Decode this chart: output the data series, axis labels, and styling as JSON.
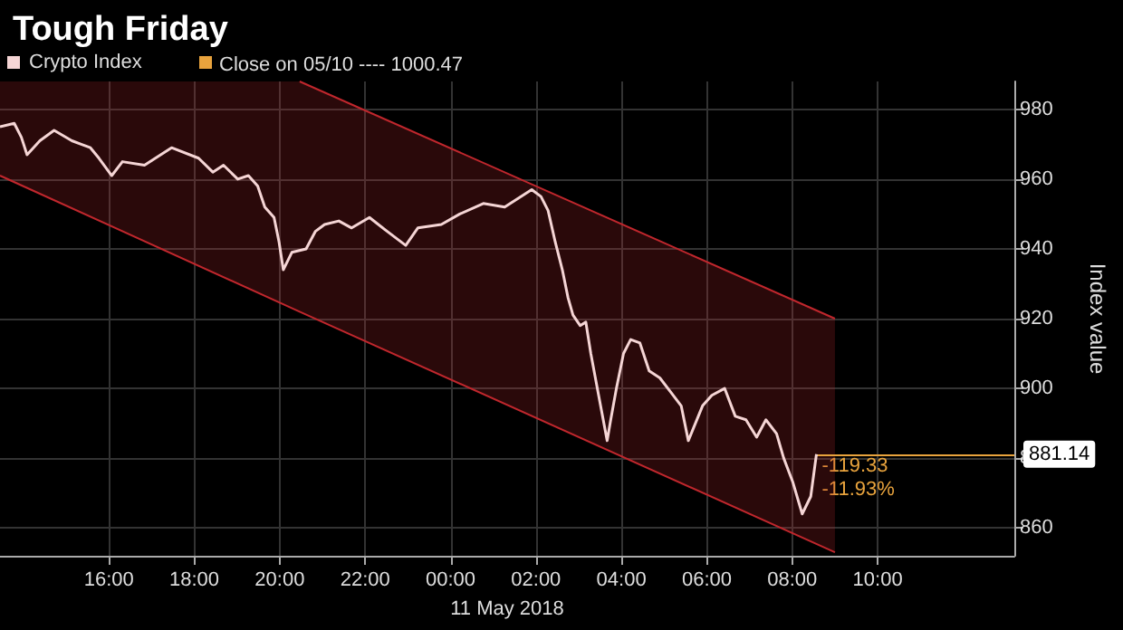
{
  "chart_data": {
    "type": "line",
    "title": "Tough Friday",
    "ylabel": "Index value",
    "xlabel": "11 May 2018",
    "xlim": [
      "2018-05-10T13:27",
      "2018-05-11T13:12"
    ],
    "xticks": [
      {
        "value": "2018-05-10T16:00",
        "label": "16:00"
      },
      {
        "value": "2018-05-10T18:00",
        "label": "18:00"
      },
      {
        "value": "2018-05-10T20:00",
        "label": "20:00"
      },
      {
        "value": "2018-05-10T22:00",
        "label": "22:00"
      },
      {
        "value": "2018-05-11T00:00",
        "label": "00:00"
      },
      {
        "value": "2018-05-11T02:00",
        "label": "02:00"
      },
      {
        "value": "2018-05-11T04:00",
        "label": "04:00"
      },
      {
        "value": "2018-05-11T06:00",
        "label": "06:00"
      },
      {
        "value": "2018-05-11T08:00",
        "label": "08:00"
      },
      {
        "value": "2018-05-11T10:00",
        "label": "10:00"
      }
    ],
    "ylim": [
      852,
      988
    ],
    "yticks": [
      860,
      880,
      900,
      920,
      940,
      960,
      980
    ],
    "grid": true,
    "legend": "top left",
    "marker": "none",
    "line_style": "solid",
    "series": [
      {
        "name": "Crypto Index",
        "color": "#f5d5d5",
        "x": [
          "2018-05-10T13:27",
          "2018-05-10T13:47",
          "2018-05-10T13:57",
          "2018-05-10T14:05",
          "2018-05-10T14:23",
          "2018-05-10T14:43",
          "2018-05-10T15:08",
          "2018-05-10T15:21",
          "2018-05-10T15:34",
          "2018-05-10T15:46",
          "2018-05-10T16:04",
          "2018-05-10T16:19",
          "2018-05-10T16:50",
          "2018-05-10T17:28",
          "2018-05-10T18:06",
          "2018-05-10T18:26",
          "2018-05-10T18:41",
          "2018-05-10T19:01",
          "2018-05-10T19:16",
          "2018-05-10T19:29",
          "2018-05-10T19:39",
          "2018-05-10T19:52",
          "2018-05-10T19:59",
          "2018-05-10T20:05",
          "2018-05-10T20:17",
          "2018-05-10T20:37",
          "2018-05-10T20:50",
          "2018-05-10T21:03",
          "2018-05-10T21:23",
          "2018-05-10T21:41",
          "2018-05-10T22:06",
          "2018-05-10T22:31",
          "2018-05-10T22:57",
          "2018-05-10T23:14",
          "2018-05-10T23:47",
          "2018-05-11T00:13",
          "2018-05-11T00:46",
          "2018-05-11T01:16",
          "2018-05-11T01:54",
          "2018-05-11T02:07",
          "2018-05-11T02:17",
          "2018-05-11T02:27",
          "2018-05-11T02:37",
          "2018-05-11T02:45",
          "2018-05-11T02:52",
          "2018-05-11T03:02",
          "2018-05-11T03:10",
          "2018-05-11T03:17",
          "2018-05-11T03:28",
          "2018-05-11T03:40",
          "2018-05-11T03:45",
          "2018-05-11T03:53",
          "2018-05-11T04:03",
          "2018-05-11T04:13",
          "2018-05-11T04:26",
          "2018-05-11T04:39",
          "2018-05-11T04:54",
          "2018-05-11T05:09",
          "2018-05-11T05:24",
          "2018-05-11T05:34",
          "2018-05-11T05:44",
          "2018-05-11T05:54",
          "2018-05-11T06:07",
          "2018-05-11T06:25",
          "2018-05-11T06:40",
          "2018-05-11T06:55",
          "2018-05-11T07:10",
          "2018-05-11T07:23",
          "2018-05-11T07:38",
          "2018-05-11T07:48",
          "2018-05-11T08:01",
          "2018-05-11T08:14",
          "2018-05-11T08:26",
          "2018-05-11T08:34"
        ],
        "values": [
          975,
          976,
          972,
          967,
          971,
          974,
          971,
          970,
          969,
          966,
          961,
          965,
          964,
          969,
          966,
          962,
          964,
          960,
          961,
          958,
          952,
          949,
          942,
          934,
          939,
          940,
          945,
          947,
          948,
          946,
          949,
          945,
          941,
          946,
          947,
          950,
          953,
          952,
          957,
          955,
          951,
          942,
          934,
          926,
          921,
          918,
          919,
          910,
          898,
          885,
          891,
          900,
          910,
          914,
          913,
          905,
          903,
          899,
          895,
          885,
          890,
          895,
          898,
          900,
          892,
          891,
          886,
          891,
          887,
          880,
          873,
          864,
          869,
          881.14
        ]
      },
      {
        "color": "#c0272d",
        "x": [
          "2018-05-10T20:28",
          "2018-05-11T09:00"
        ],
        "values": [
          988,
          920
        ]
      },
      {
        "color": "#c0272d",
        "x": [
          "2018-05-10T13:27",
          "2018-05-10T20:28",
          "2018-05-11T09:00"
        ],
        "values": [
          961,
          922,
          853
        ],
        "lower": [
          961,
          922,
          853
        ],
        "upper": [
          988,
          988,
          920
        ]
      }
    ],
    "ref_lines": [
      {
        "axis": "y",
        "value": 881.14,
        "label": "881.14",
        "color": "#e8a33d"
      }
    ],
    "annotations": [
      "Close on 05/10 ---- 1000.47",
      "-119.33",
      "-11.93%"
    ]
  }
}
